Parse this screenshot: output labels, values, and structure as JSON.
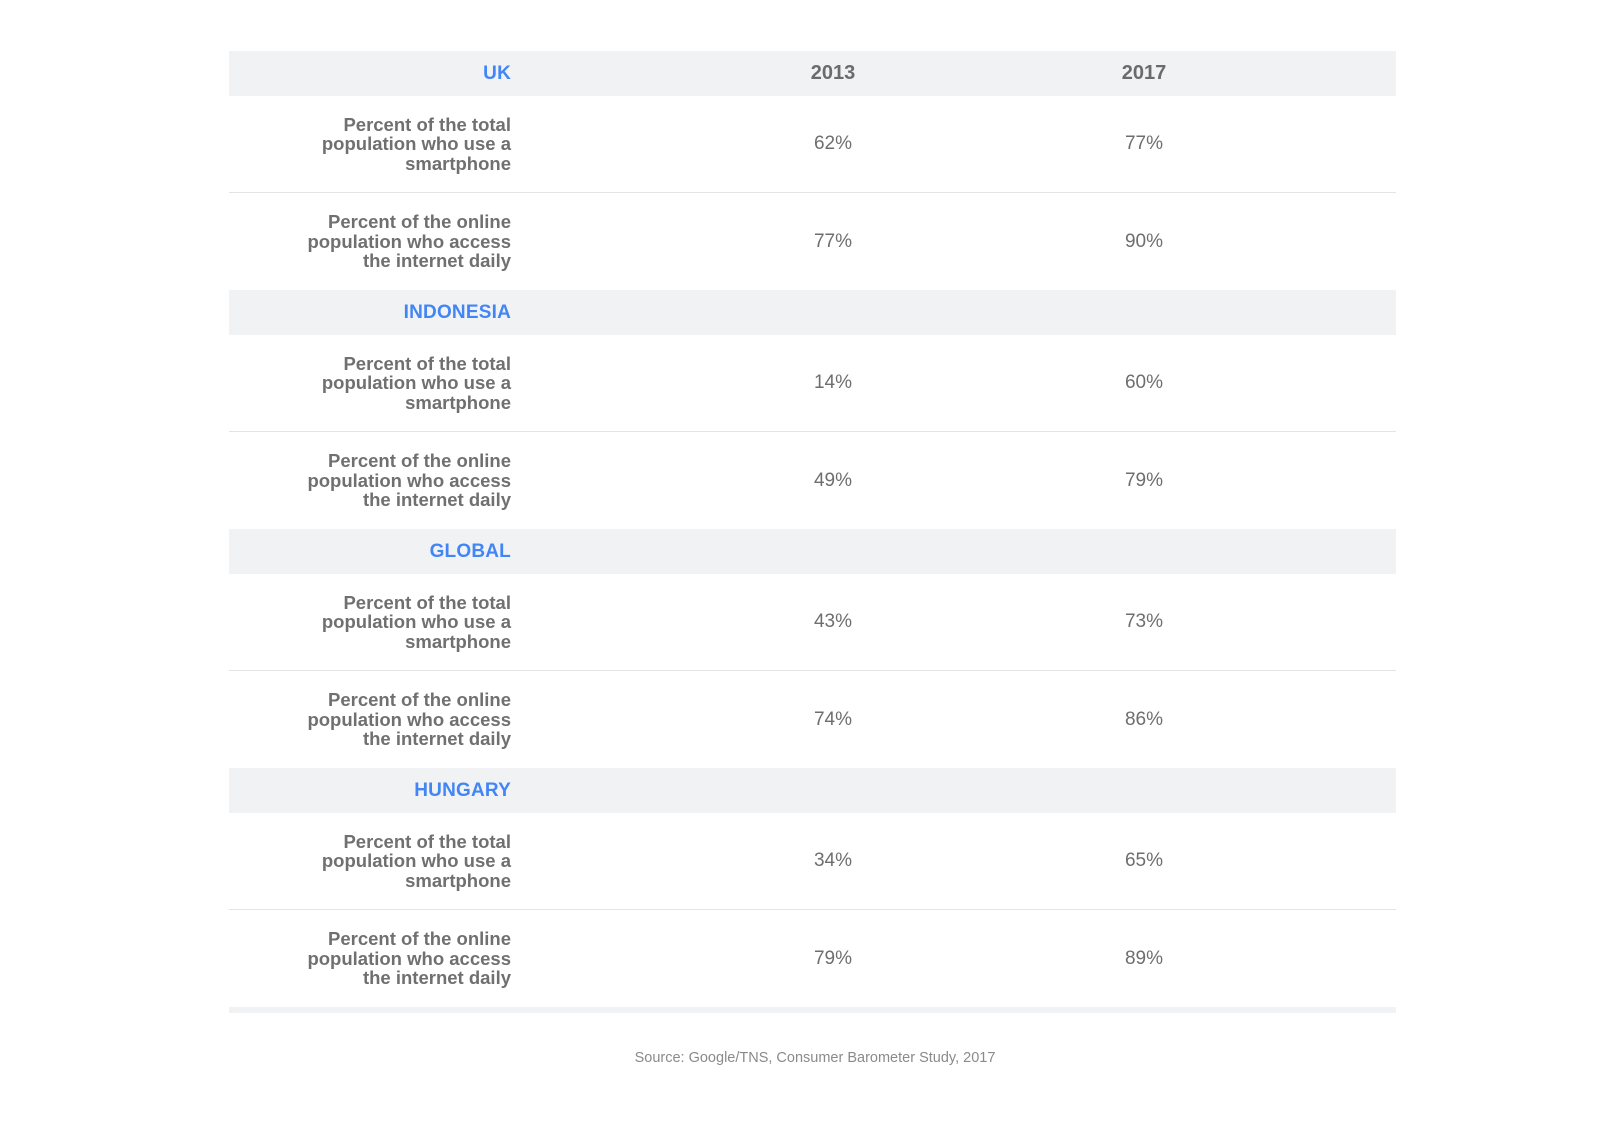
{
  "chart_data": {
    "type": "table",
    "columns": [
      "2013",
      "2017"
    ],
    "sections": [
      {
        "region": "UK",
        "rows": [
          {
            "metric_lines": [
              "Percent of the total",
              "population who use a",
              "smartphone"
            ],
            "values": [
              "62%",
              "77%"
            ]
          },
          {
            "metric_lines": [
              "Percent of the online",
              "population who access",
              "the internet daily"
            ],
            "values": [
              "77%",
              "90%"
            ]
          }
        ]
      },
      {
        "region": "INDONESIA",
        "rows": [
          {
            "metric_lines": [
              "Percent of the total",
              "population who use a",
              "smartphone"
            ],
            "values": [
              "14%",
              "60%"
            ]
          },
          {
            "metric_lines": [
              "Percent of the online",
              "population who access",
              "the internet daily"
            ],
            "values": [
              "49%",
              "79%"
            ]
          }
        ]
      },
      {
        "region": "GLOBAL",
        "rows": [
          {
            "metric_lines": [
              "Percent of the total",
              "population who use a",
              "smartphone"
            ],
            "values": [
              "43%",
              "73%"
            ]
          },
          {
            "metric_lines": [
              "Percent of the online",
              "population who access",
              "the internet daily"
            ],
            "values": [
              "74%",
              "86%"
            ]
          }
        ]
      },
      {
        "region": "HUNGARY",
        "rows": [
          {
            "metric_lines": [
              "Percent of the total",
              "population who use a",
              "smartphone"
            ],
            "values": [
              "34%",
              "65%"
            ]
          },
          {
            "metric_lines": [
              "Percent of the online",
              "population who access",
              "the internet daily"
            ],
            "values": [
              "79%",
              "89%"
            ]
          }
        ]
      }
    ],
    "source": "Source: Google/TNS, Consumer Barometer Study, 2017"
  },
  "colors": {
    "region_accent": "#4285f4",
    "header_band": "#f1f2f4",
    "text_gray": "#707070"
  }
}
